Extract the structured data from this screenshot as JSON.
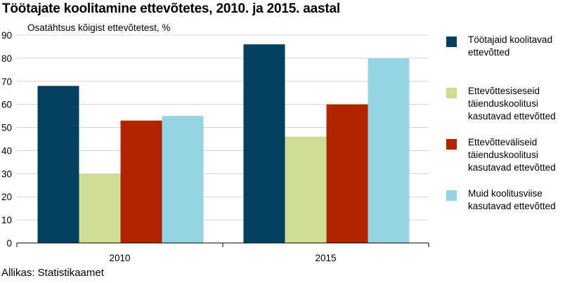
{
  "chart_data": {
    "type": "bar",
    "title": "Töötajate koolitamine ettevõtetes, 2010. ja 2015. aastal",
    "ylabel": "Osatähtsus kõigist ettevõtetest, %",
    "xlabel": "",
    "ylim": [
      0,
      90
    ],
    "yticks": [
      0,
      10,
      20,
      30,
      40,
      50,
      60,
      70,
      80,
      90
    ],
    "grid": true,
    "legend_position": "right",
    "categories": [
      "2010",
      "2015"
    ],
    "series": [
      {
        "name": "Töötajaid koolitavad ettevõtted",
        "color": "#023f5e",
        "values": [
          68,
          86
        ]
      },
      {
        "name": "Ettevõttesiseseid täienduskoolitusi kasutavad ettevõtted",
        "color": "#cfde93",
        "values": [
          30,
          46
        ]
      },
      {
        "name": "Ettevõtteväliseid täienduskoolitusi kasutavad ettevõtted",
        "color": "#b02400",
        "values": [
          53,
          60
        ]
      },
      {
        "name": "Muid koolitusviise kasutavad ettevõtted",
        "color": "#96d5e4",
        "values": [
          55,
          80
        ]
      }
    ]
  },
  "source": "Allikas: Statistikaamet"
}
